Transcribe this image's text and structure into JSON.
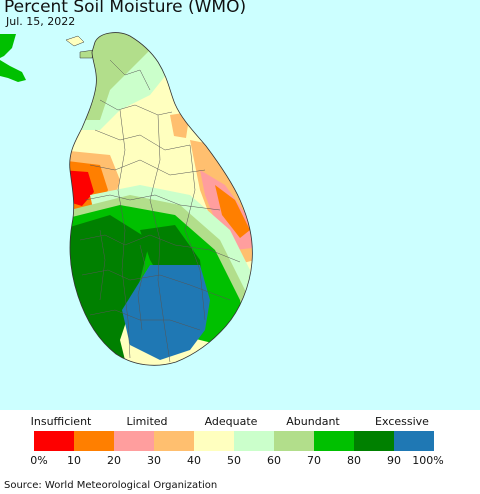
{
  "title": "Percent Soil Moisture (WMO)",
  "date": "Jul. 15, 2022",
  "legend": {
    "categories": [
      "Insufficient",
      "Limited",
      "Adequate",
      "Abundant",
      "Excessive"
    ],
    "colors": [
      "#fe0000",
      "#ff7f00",
      "#ff9e9e",
      "#ffbf6f",
      "#ffffbf",
      "#cbffcb",
      "#b2de8b",
      "#00c000",
      "#008000",
      "#1f78b4"
    ],
    "ticks": [
      "0%",
      "10",
      "20",
      "30",
      "40",
      "50",
      "60",
      "70",
      "80",
      "90",
      "100%"
    ]
  },
  "source": "Source: World Meteorological Organization",
  "colors": {
    "sea": "#ccffff",
    "mainland_india": "#00c000"
  }
}
